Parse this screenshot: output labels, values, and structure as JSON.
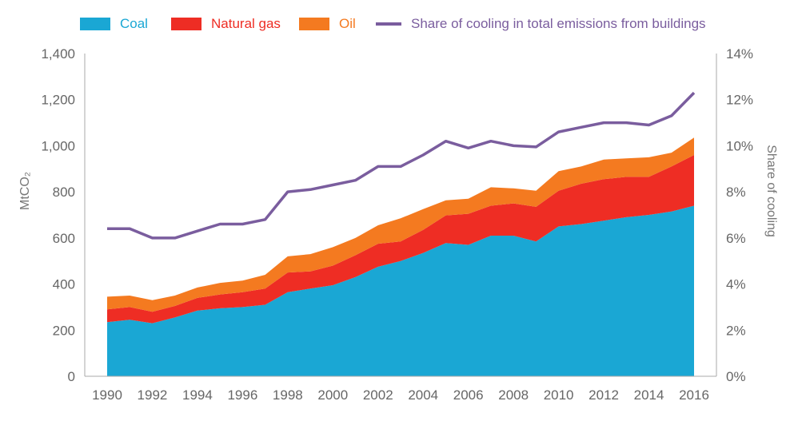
{
  "chart_data": {
    "type": "area",
    "title": "",
    "x": [
      1990,
      1991,
      1992,
      1993,
      1994,
      1995,
      1996,
      1997,
      1998,
      1999,
      2000,
      2001,
      2002,
      2003,
      2004,
      2005,
      2006,
      2007,
      2008,
      2009,
      2010,
      2011,
      2012,
      2013,
      2014,
      2015,
      2016
    ],
    "x_ticks": [
      "1990",
      "1992",
      "1994",
      "1996",
      "1998",
      "2000",
      "2002",
      "2004",
      "2006",
      "2008",
      "2010",
      "2012",
      "2014",
      "2016"
    ],
    "y_left": {
      "label": "MtCO₂",
      "range": [
        0,
        1400
      ],
      "ticks": [
        "0",
        "200",
        "400",
        "600",
        "800",
        "1,000",
        "1,200",
        "1,400"
      ]
    },
    "y_right": {
      "label": "Share of cooling",
      "range": [
        0,
        14
      ],
      "ticks": [
        "0%",
        "2%",
        "4%",
        "6%",
        "8%",
        "10%",
        "12%",
        "14%"
      ]
    },
    "series": [
      {
        "name": "Coal",
        "kind": "stacked-area",
        "axis": "left",
        "color": "#1aa7d4",
        "values": [
          235,
          245,
          230,
          255,
          285,
          295,
          300,
          310,
          365,
          380,
          395,
          430,
          475,
          500,
          535,
          578,
          570,
          610,
          610,
          585,
          650,
          660,
          675,
          690,
          700,
          715,
          740
        ]
      },
      {
        "name": "Natural gas",
        "kind": "stacked-area",
        "axis": "left",
        "color": "#ee2d24",
        "values": [
          55,
          55,
          50,
          50,
          55,
          60,
          65,
          70,
          85,
          75,
          85,
          95,
          100,
          85,
          100,
          120,
          135,
          130,
          140,
          150,
          155,
          175,
          180,
          175,
          165,
          195,
          220
        ]
      },
      {
        "name": "Oil",
        "kind": "stacked-area",
        "axis": "left",
        "color": "#f47a20",
        "values": [
          55,
          50,
          50,
          45,
          45,
          50,
          50,
          60,
          70,
          75,
          80,
          75,
          80,
          100,
          90,
          65,
          65,
          80,
          65,
          70,
          85,
          75,
          85,
          80,
          85,
          60,
          75
        ]
      },
      {
        "name": "Share of cooling in total emissions from buildings",
        "kind": "line",
        "axis": "right",
        "color": "#7a5d9e",
        "values": [
          6.4,
          6.4,
          6.0,
          6.0,
          6.3,
          6.6,
          6.6,
          6.8,
          8.0,
          8.1,
          8.3,
          8.5,
          9.1,
          9.1,
          9.6,
          10.2,
          9.9,
          10.2,
          10.0,
          9.95,
          10.6,
          10.8,
          11.0,
          11.0,
          10.9,
          11.3,
          12.3
        ]
      }
    ],
    "legend_position": "top",
    "grid": false
  }
}
